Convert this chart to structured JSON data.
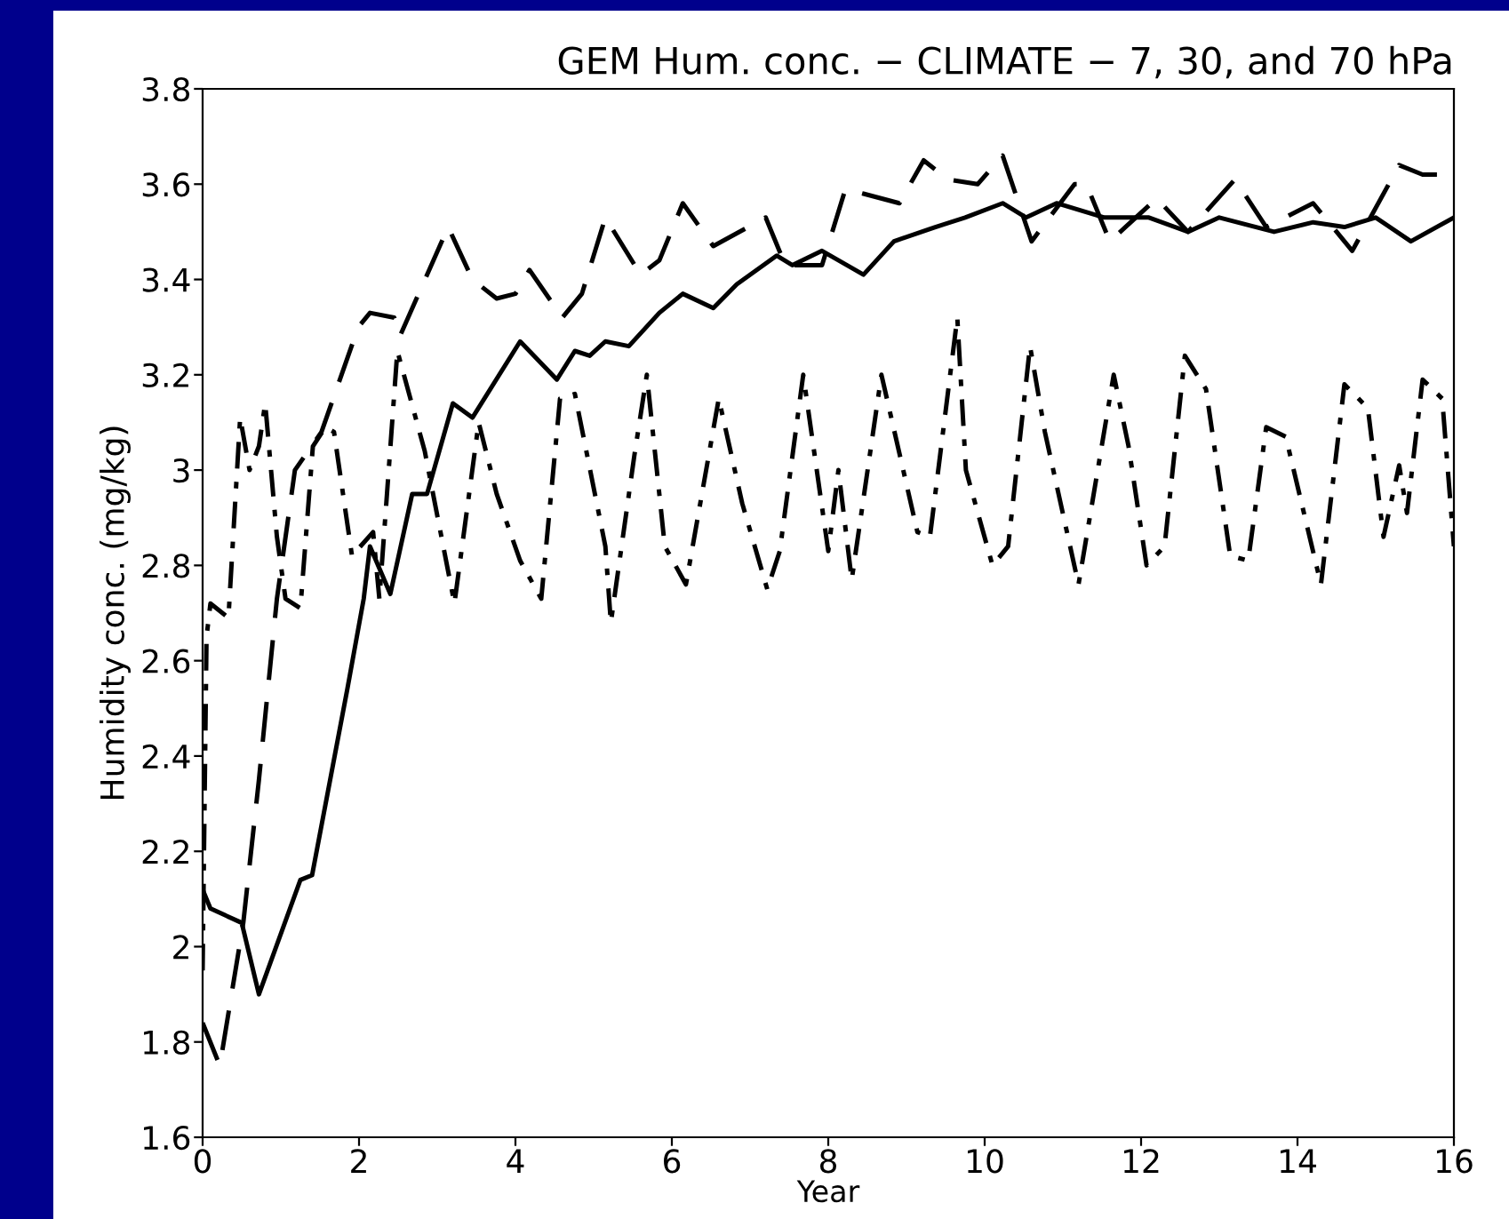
{
  "chart_data": {
    "type": "line",
    "title": "GEM Hum. conc. − CLIMATE − 7, 30, and 70 hPa",
    "xlabel": "Year",
    "ylabel": "Humidity conc. (mg/kg)",
    "xlim": [
      0,
      16
    ],
    "xticks": [
      0,
      2,
      4,
      6,
      8,
      10,
      12,
      14,
      16
    ],
    "ylim": [
      1.6,
      3.8
    ],
    "yticks": [
      1.6,
      1.8,
      2,
      2.2,
      2.4,
      2.6,
      2.8,
      3,
      3.2,
      3.4,
      3.6,
      3.8
    ],
    "grid": false,
    "legend": false,
    "series": [
      {
        "color": "#000000",
        "line_style": "solid",
        "x": [
          0,
          0.1,
          0.5,
          0.72,
          1.25,
          1.4,
          1.85,
          2.06,
          2.14,
          2.4,
          2.68,
          2.87,
          3.2,
          3.45,
          4.06,
          4.53,
          4.76,
          4.95,
          5.15,
          5.45,
          5.84,
          6.14,
          6.53,
          6.83,
          7.34,
          7.54,
          7.92,
          8.45,
          8.84,
          9.37,
          9.75,
          10.23,
          10.53,
          10.92,
          11.53,
          12.1,
          12.6,
          13.0,
          13.7,
          14.2,
          14.6,
          15.0,
          15.45,
          16
        ],
        "values": [
          2.12,
          2.08,
          2.05,
          1.9,
          2.14,
          2.15,
          2.54,
          2.73,
          2.84,
          2.74,
          2.95,
          2.95,
          3.14,
          3.11,
          3.27,
          3.19,
          3.25,
          3.24,
          3.27,
          3.26,
          3.33,
          3.37,
          3.34,
          3.39,
          3.45,
          3.43,
          3.46,
          3.41,
          3.48,
          3.51,
          3.53,
          3.56,
          3.53,
          3.56,
          3.53,
          3.53,
          3.5,
          3.53,
          3.5,
          3.52,
          3.51,
          3.53,
          3.48,
          3.53
        ]
      },
      {
        "color": "#000000",
        "line_style": "dashed",
        "x": [
          0,
          0.22,
          0.52,
          0.72,
          0.95,
          1.18,
          1.52,
          1.99,
          2.14,
          2.45,
          2.52,
          3.14,
          3.45,
          3.76,
          4.0,
          4.18,
          4.6,
          4.85,
          5.15,
          5.6,
          5.84,
          6.14,
          6.53,
          7.2,
          7.45,
          7.92,
          8.22,
          8.45,
          8.91,
          9.22,
          9.53,
          9.91,
          10.23,
          10.6,
          11.15,
          11.3,
          11.6,
          12.2,
          12.6,
          13.2,
          13.6,
          14.2,
          14.7,
          15.3,
          15.6,
          15.9,
          16
        ],
        "values": [
          1.84,
          1.75,
          2.05,
          2.35,
          2.73,
          3.0,
          3.08,
          3.3,
          3.33,
          3.32,
          3.28,
          3.51,
          3.4,
          3.36,
          3.37,
          3.42,
          3.32,
          3.37,
          3.53,
          3.41,
          3.44,
          3.56,
          3.47,
          3.53,
          3.43,
          3.43,
          3.59,
          3.58,
          3.56,
          3.65,
          3.61,
          3.6,
          3.66,
          3.48,
          3.6,
          3.6,
          3.48,
          3.57,
          3.5,
          3.61,
          3.51,
          3.56,
          3.46,
          3.64,
          3.62,
          3.62,
          3.62
        ]
      },
      {
        "color": "#000000",
        "line_style": "dashdot",
        "x": [
          0,
          0.05,
          0.1,
          0.33,
          0.48,
          0.6,
          0.72,
          0.8,
          0.95,
          1.06,
          1.25,
          1.41,
          1.57,
          1.68,
          1.91,
          2.18,
          2.26,
          2.49,
          2.84,
          3.22,
          3.53,
          3.76,
          4.06,
          4.33,
          4.57,
          4.76,
          5.15,
          5.22,
          5.52,
          5.68,
          5.91,
          6.18,
          6.6,
          6.9,
          7.22,
          7.38,
          7.68,
          8.0,
          8.13,
          8.3,
          8.68,
          9.14,
          9.3,
          9.65,
          9.76,
          10.1,
          10.3,
          10.58,
          10.77,
          11.2,
          11.65,
          11.84,
          12.07,
          12.3,
          12.56,
          12.83,
          13.14,
          13.37,
          13.6,
          13.85,
          14.3,
          14.6,
          14.9,
          15.1,
          15.3,
          15.4,
          15.6,
          15.85,
          16
        ],
        "values": [
          1.95,
          2.65,
          2.72,
          2.69,
          3.11,
          3.0,
          3.05,
          3.14,
          2.86,
          2.73,
          2.71,
          3.05,
          3.09,
          3.08,
          2.82,
          2.87,
          2.73,
          3.25,
          3.04,
          2.72,
          3.1,
          2.95,
          2.81,
          2.73,
          3.15,
          3.16,
          2.84,
          2.68,
          3.03,
          3.2,
          2.84,
          2.76,
          3.15,
          2.93,
          2.75,
          2.83,
          3.2,
          2.83,
          3.0,
          2.77,
          3.2,
          2.87,
          2.86,
          3.32,
          3.0,
          2.8,
          2.84,
          3.26,
          3.08,
          2.76,
          3.2,
          3.05,
          2.8,
          2.84,
          3.24,
          3.17,
          2.82,
          2.81,
          3.09,
          3.07,
          2.76,
          3.18,
          3.13,
          2.86,
          3.01,
          2.91,
          3.19,
          3.15,
          2.84
        ]
      }
    ]
  }
}
